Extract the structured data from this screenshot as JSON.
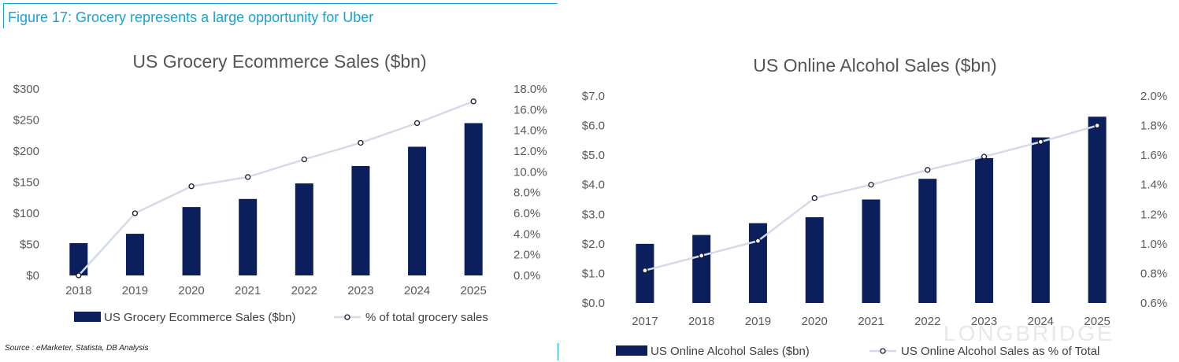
{
  "figure_title": "Figure 17: Grocery represents a large opportunity for Uber",
  "source": "Source : eMarketer, Statista, DB Analysis",
  "watermark": "LONGBRIDGE",
  "colors": {
    "bar": "#0a1f5c",
    "line": "#d4dbe8",
    "marker_edge": "#1a1a2e",
    "accent": "#1aa1d4"
  },
  "chart_data": [
    {
      "type": "bar",
      "title": "US Grocery Ecommerce Sales ($bn)",
      "categories": [
        "2018",
        "2019",
        "2020",
        "2021",
        "2022",
        "2023",
        "2024",
        "2025"
      ],
      "series": [
        {
          "name": "US Grocery Ecommerce Sales ($bn)",
          "type": "bar",
          "axis": "left",
          "values": [
            52,
            67,
            110,
            123,
            148,
            176,
            207,
            245
          ]
        },
        {
          "name": "% of total grocery sales",
          "type": "line",
          "axis": "right",
          "values": [
            0.0,
            6.0,
            8.6,
            9.5,
            11.2,
            12.8,
            14.7,
            16.8
          ]
        }
      ],
      "ylim_left": [
        0,
        300
      ],
      "yticks_left": [
        "$0",
        "$50",
        "$100",
        "$150",
        "$200",
        "$250",
        "$300"
      ],
      "ylim_right": [
        0,
        18
      ],
      "yticks_right": [
        "0.0%",
        "2.0%",
        "4.0%",
        "6.0%",
        "8.0%",
        "10.0%",
        "12.0%",
        "14.0%",
        "16.0%",
        "18.0%"
      ],
      "legend_position": "bottom",
      "grid": false
    },
    {
      "type": "bar",
      "title": "US Online Alcohol Sales ($bn)",
      "categories": [
        "2017",
        "2018",
        "2019",
        "2020",
        "2021",
        "2022",
        "2023",
        "2024",
        "2025"
      ],
      "series": [
        {
          "name": "US Online Alcohol Sales ($bn)",
          "type": "bar",
          "axis": "left",
          "values": [
            2.0,
            2.3,
            2.7,
            2.9,
            3.5,
            4.2,
            4.9,
            5.6,
            6.3
          ]
        },
        {
          "name": "US Online Alcohol Sales as % of Total",
          "type": "line",
          "axis": "right",
          "values": [
            0.82,
            0.92,
            1.02,
            1.31,
            1.4,
            1.5,
            1.59,
            1.69,
            1.8
          ]
        }
      ],
      "ylim_left": [
        0,
        7
      ],
      "yticks_left": [
        "$0.0",
        "$1.0",
        "$2.0",
        "$3.0",
        "$4.0",
        "$5.0",
        "$6.0",
        "$7.0"
      ],
      "ylim_right": [
        0.6,
        2.0
      ],
      "yticks_right": [
        "0.6%",
        "0.8%",
        "1.0%",
        "1.2%",
        "1.4%",
        "1.6%",
        "1.8%",
        "2.0%"
      ],
      "legend_position": "bottom",
      "grid": false
    }
  ]
}
